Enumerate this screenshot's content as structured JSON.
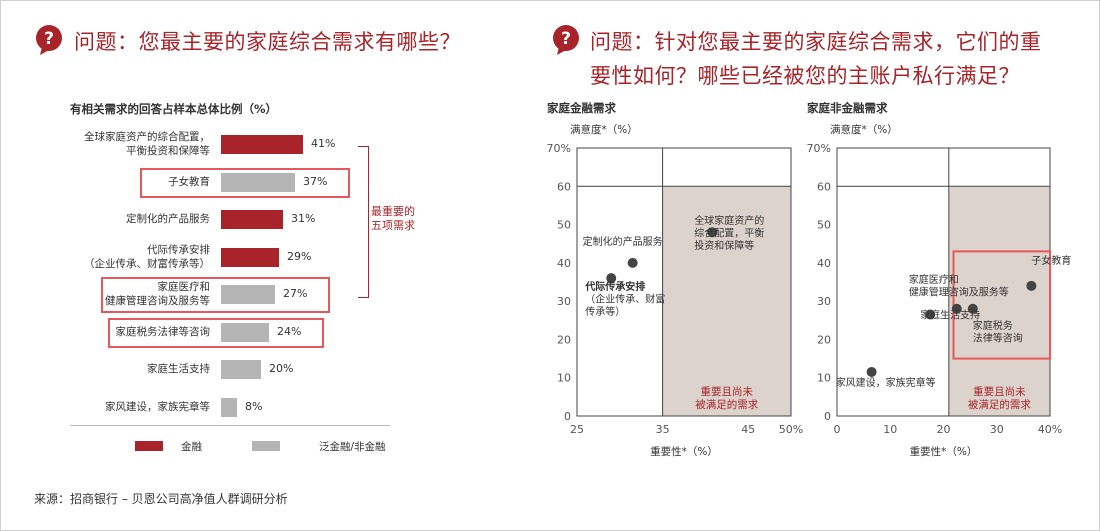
{
  "left": {
    "title": "问题：您最主要的家庭综合需求有哪些？",
    "subtitle": "有相关需求的回答占样本总体比例（%）",
    "side_note": [
      "最重要的",
      "五项需求"
    ],
    "legend": [
      {
        "label": "金融",
        "color": "#a8242a"
      },
      {
        "label": "泛金融/非金融",
        "color": "#b5b5b5"
      }
    ]
  },
  "right": {
    "title_line1": "问题：针对您最主要的家庭综合需求，它们的重",
    "title_line2": "要性如何？哪些已经被您的主账户私行满足？"
  },
  "source": "来源：招商银行 – 贝恩公司高净值人群调研分析",
  "chart_data": [
    {
      "type": "bar",
      "orientation": "horizontal",
      "categories": [
        [
          "全球家庭资产的综合配置，",
          "平衡投资和保障等"
        ],
        [
          "子女教育"
        ],
        [
          "定制化的产品服务"
        ],
        [
          "代际传承安排",
          "（企业传承、财富传承等）"
        ],
        [
          "家庭医疗和",
          "健康管理咨询及服务等"
        ],
        [
          "家庭税务法律等咨询"
        ],
        [
          "家庭生活支持"
        ],
        [
          "家风建设，家族宪章等"
        ]
      ],
      "values": [
        41,
        37,
        31,
        29,
        27,
        24,
        20,
        8
      ],
      "value_labels": [
        "41%",
        "37%",
        "31%",
        "29%",
        "27%",
        "24%",
        "20%",
        "8%"
      ],
      "group": [
        "金融",
        "泛金融/非金融",
        "金融",
        "金融",
        "泛金融/非金融",
        "泛金融/非金融",
        "泛金融/非金融",
        "泛金融/非金融"
      ],
      "highlighted": [
        1,
        4,
        5
      ],
      "bracketed": [
        0,
        1,
        2,
        3,
        4
      ],
      "xlim": [
        0,
        50
      ]
    },
    {
      "type": "scatter",
      "title": "家庭金融需求",
      "ylabel": "满意度*（%）",
      "xlabel": "重要性*（%）",
      "xlim": [
        25,
        50
      ],
      "ylim": [
        0,
        70
      ],
      "xticks": [
        "25",
        "35",
        "45",
        "50%"
      ],
      "xtick_values": [
        25,
        35,
        45,
        50
      ],
      "yticks": [
        "0",
        "10",
        "20",
        "30",
        "40",
        "50",
        "60",
        "70%"
      ],
      "threshold": {
        "x": 35,
        "y": 60
      },
      "region_label": [
        "重要且尚未",
        "被满足的需求"
      ],
      "points": [
        {
          "x": 40.8,
          "y": 48,
          "label": [
            "全球家庭资产的",
            "综合配置，平衡",
            "投资和保障等"
          ],
          "bold": false
        },
        {
          "x": 31.5,
          "y": 40,
          "label": [
            "定制化的产品服务"
          ],
          "bold": false
        },
        {
          "x": 29,
          "y": 36,
          "label": [
            "代际传承安排",
            "（企业传承、财富",
            "传承等）"
          ],
          "bold": true
        }
      ]
    },
    {
      "type": "scatter",
      "title": "家庭非金融需求",
      "ylabel": "满意度*（%）",
      "xlabel": "重要性*（%）",
      "xlim": [
        0,
        40
      ],
      "ylim": [
        0,
        70
      ],
      "xticks": [
        "0",
        "10",
        "20",
        "30",
        "40%"
      ],
      "xtick_values": [
        0,
        10,
        20,
        30,
        40
      ],
      "yticks": [
        "0",
        "10",
        "20",
        "30",
        "40",
        "50",
        "60",
        "70%"
      ],
      "threshold": {
        "x": 21,
        "y": 60
      },
      "region_label": [
        "重要且尚未",
        "被满足的需求"
      ],
      "highlight_box": {
        "x0": 21.5,
        "x1": 40,
        "y0": 15,
        "y1": 43
      },
      "points": [
        {
          "x": 36.5,
          "y": 34,
          "label": [
            "子女教育"
          ]
        },
        {
          "x": 22.5,
          "y": 28,
          "label": [
            "家庭医疗和",
            "健康管理咨询及服务等"
          ]
        },
        {
          "x": 25.5,
          "y": 28,
          "label": [
            "家庭税务",
            "法律等咨询"
          ]
        },
        {
          "x": 17.5,
          "y": 26.5,
          "label": [
            "家庭生活支持"
          ]
        },
        {
          "x": 6.5,
          "y": 11.5,
          "label": [
            "家风建设，家族宪章等"
          ]
        }
      ]
    }
  ]
}
